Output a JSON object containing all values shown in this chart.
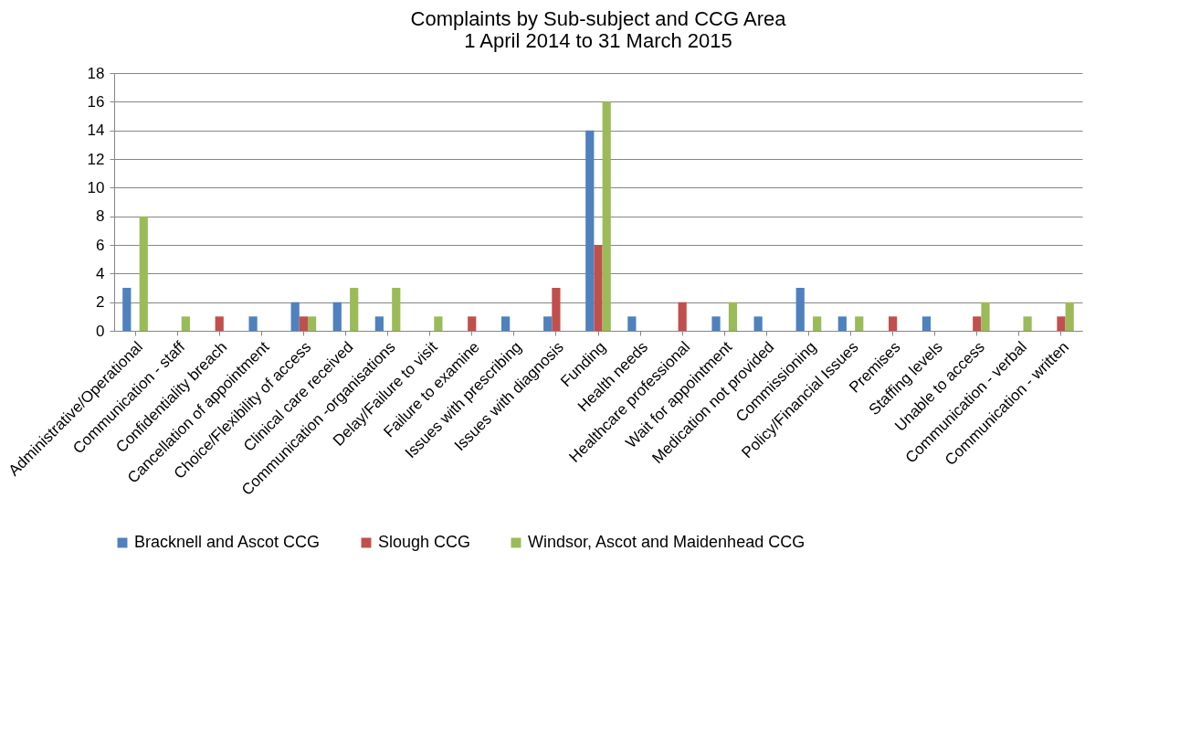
{
  "chart_data": {
    "type": "bar",
    "title": "Complaints by Sub-subject and CCG Area\n1 April 2014 to 31 March 2015",
    "categories": [
      "Administrative/Operational",
      "Communication - staff",
      "Confidentiality breach",
      "Cancellation of appointment",
      "Choice/Flexibility of access",
      "Clinical care received",
      "Communication -organisations",
      "Delay/Failure to visit",
      "Failure to examine",
      "Issues with prescribing",
      "Issues with diagnosis",
      "Funding",
      "Health needs",
      "Healthcare professional",
      "Wait for appointment",
      "Medication not provided",
      "Commissioning",
      "Policy/Financial Issues",
      "Premises",
      "Staffing levels",
      "Unable to access",
      "Communication - verbal",
      "Communication - written"
    ],
    "series": [
      {
        "name": "Bracknell and Ascot CCG",
        "color": "#4f81bd",
        "values": [
          3,
          0,
          0,
          1,
          2,
          2,
          1,
          0,
          0,
          1,
          1,
          14,
          1,
          0,
          1,
          1,
          3,
          1,
          0,
          1,
          0,
          0,
          0
        ]
      },
      {
        "name": "Slough CCG",
        "color": "#c0504d",
        "values": [
          0,
          0,
          1,
          0,
          1,
          0,
          0,
          0,
          1,
          0,
          3,
          6,
          0,
          2,
          0,
          0,
          0,
          0,
          1,
          0,
          1,
          0,
          1
        ]
      },
      {
        "name": "Windsor, Ascot and Maidenhead CCG",
        "color": "#9bbb59",
        "values": [
          8,
          1,
          0,
          0,
          1,
          3,
          3,
          1,
          0,
          0,
          0,
          16,
          0,
          0,
          2,
          0,
          1,
          1,
          0,
          0,
          2,
          1,
          2
        ]
      }
    ],
    "ylim": [
      0,
      18
    ],
    "yticks": [
      0,
      2,
      4,
      6,
      8,
      10,
      12,
      14,
      16,
      18
    ],
    "grid": "y",
    "legend": "bottom"
  }
}
